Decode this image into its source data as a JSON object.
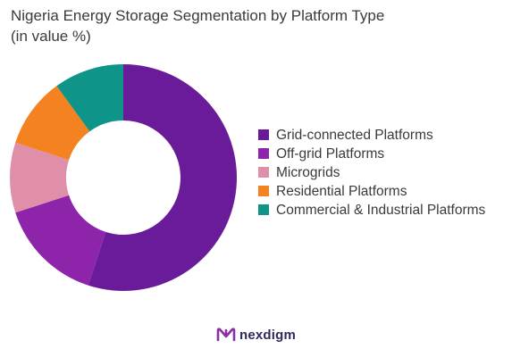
{
  "title_line1": "Nigeria Energy Storage Segmentation by Platform Type",
  "title_line2": "(in value %)",
  "brand": {
    "name": "nexdigm",
    "logo_color": "#8b2fa3"
  },
  "chart_data": {
    "type": "pie",
    "donut": true,
    "title": "Nigeria Energy Storage Segmentation by Platform Type (in value %)",
    "legend_position": "right",
    "categories": [
      "Grid-connected Platforms",
      "Off-grid Platforms",
      "Microgrids",
      "Residential Platforms",
      "Commercial & Industrial Platforms"
    ],
    "values": [
      55,
      15,
      10,
      10,
      10
    ],
    "colors": [
      "#6a1b9a",
      "#8e24aa",
      "#e08fa8",
      "#f58220",
      "#0e9488"
    ]
  }
}
